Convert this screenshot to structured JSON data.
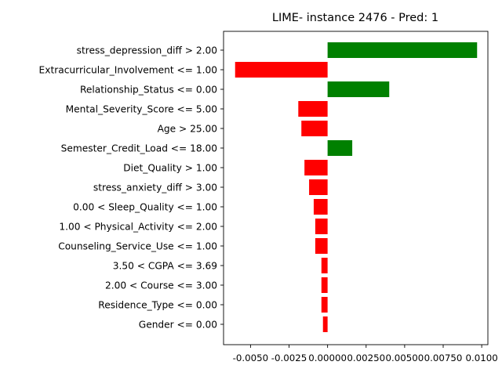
{
  "chart_data": {
    "type": "bar",
    "orientation": "horizontal",
    "title": "LIME- instance 2476 - Pred: 1",
    "xlabel": "",
    "ylabel": "",
    "xlim": [
      -0.00675,
      0.0104
    ],
    "xticks": [
      -0.005,
      -0.0025,
      0.0,
      0.0025,
      0.005,
      0.0075,
      0.01
    ],
    "xtick_labels": [
      "-0.0050",
      "-0.0025",
      "0.00000",
      "0.00250",
      "0.00500",
      "0.00750",
      "0.0100"
    ],
    "grid": false,
    "colors": {
      "positive": "#008000",
      "negative": "#ff0000"
    },
    "categories": [
      "stress_depression_diff > 2.00",
      "Extracurricular_Involvement <= 1.00",
      "Relationship_Status <= 0.00",
      "Mental_Severity_Score <= 5.00",
      "Age > 25.00",
      "Semester_Credit_Load <= 18.00",
      "Diet_Quality > 1.00",
      "stress_anxiety_diff > 3.00",
      "0.00 < Sleep_Quality <= 1.00",
      "1.00 < Physical_Activity <= 2.00",
      "Counseling_Service_Use <= 1.00",
      "3.50 < CGPA <= 3.69",
      "2.00 < Course <= 3.00",
      "Residence_Type <= 0.00",
      "Gender <= 0.00"
    ],
    "values": [
      0.0097,
      -0.006,
      0.004,
      -0.0019,
      -0.0017,
      0.0016,
      -0.0015,
      -0.0012,
      -0.0009,
      -0.0008,
      -0.0008,
      -0.0004,
      -0.0004,
      -0.0004,
      -0.0003
    ]
  }
}
